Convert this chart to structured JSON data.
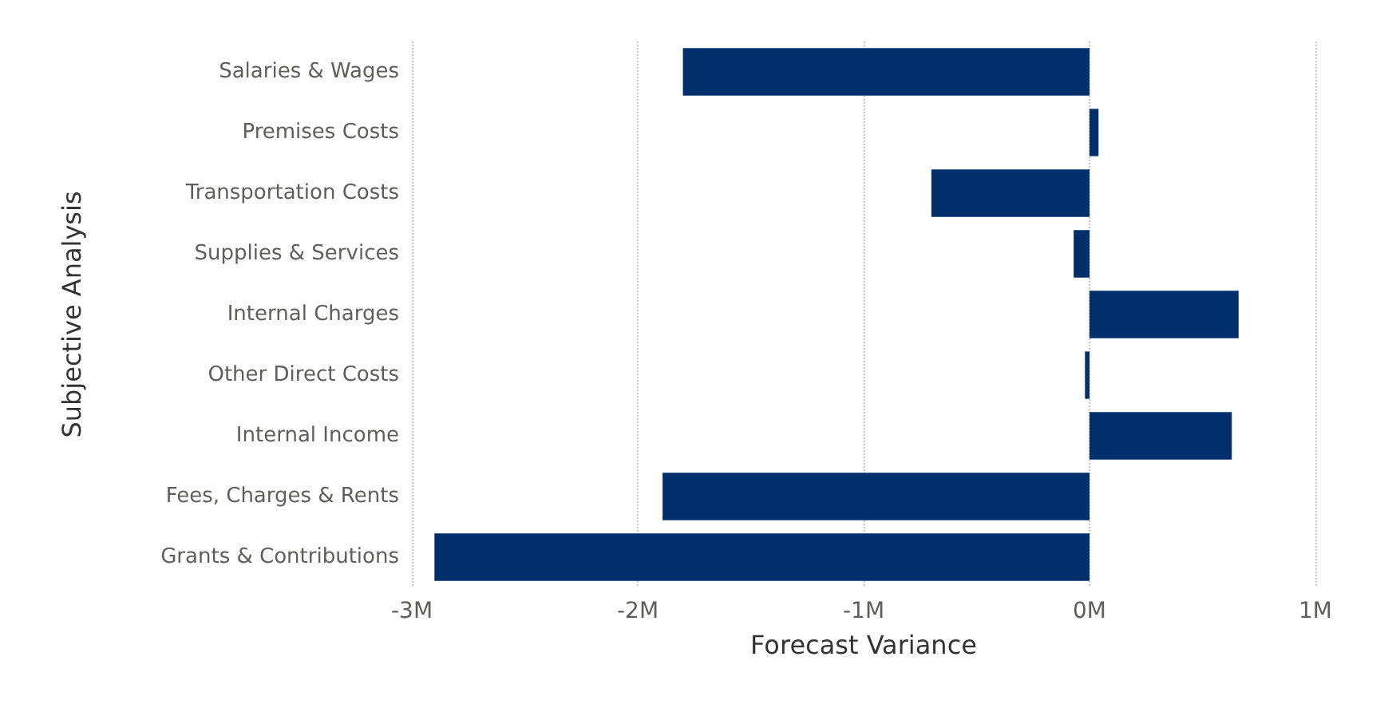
{
  "chart_data": {
    "type": "bar",
    "orientation": "horizontal",
    "xlabel": "Forecast Variance",
    "ylabel": "Subjective Analysis",
    "categories": [
      "Salaries & Wages",
      "Premises Costs",
      "Transportation Costs",
      "Supplies & Services",
      "Internal Charges",
      "Other Direct Costs",
      "Internal Income",
      "Fees, Charges & Rents",
      "Grants & Contributions"
    ],
    "values": [
      -1.8,
      0.04,
      -0.7,
      -0.07,
      0.66,
      -0.02,
      0.63,
      -1.89,
      -2.9
    ],
    "color": "#002f6c",
    "xlim": [
      -3,
      1
    ],
    "xticks": [
      {
        "value": -3,
        "label": "-3M"
      },
      {
        "value": -2,
        "label": "-2M"
      },
      {
        "value": -1,
        "label": "-1M"
      },
      {
        "value": 0,
        "label": "0M"
      },
      {
        "value": 1,
        "label": "1M"
      }
    ],
    "grid": "x"
  }
}
